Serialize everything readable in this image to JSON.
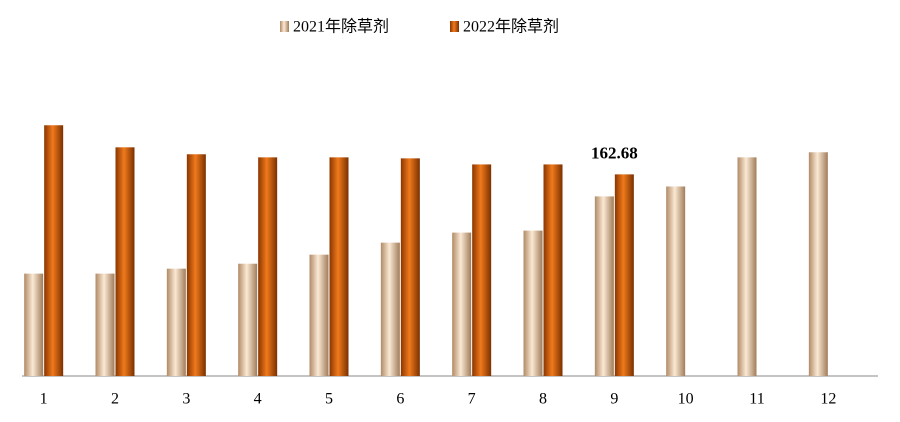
{
  "chart_data": {
    "type": "bar",
    "categories": [
      "1",
      "2",
      "3",
      "4",
      "5",
      "6",
      "7",
      "8",
      "9",
      "10",
      "11",
      "12"
    ],
    "series": [
      {
        "name": "2021年除草剂",
        "color": "#e8c9a6",
        "values": [
          82.6,
          82.6,
          86.6,
          90.6,
          97.9,
          107.6,
          115.7,
          117.3,
          144.9,
          152.9,
          176.4,
          180.5
        ]
      },
      {
        "name": "2022年除草剂",
        "color": "#e0640a",
        "values": [
          202.3,
          184.5,
          178.9,
          176.4,
          176.4,
          175.6,
          170.7,
          170.7,
          162.68,
          null,
          null,
          null
        ],
        "value_labels": [
          null,
          null,
          null,
          null,
          null,
          null,
          null,
          null,
          "162.68",
          null,
          null,
          null
        ]
      }
    ],
    "legend": "top"
  }
}
